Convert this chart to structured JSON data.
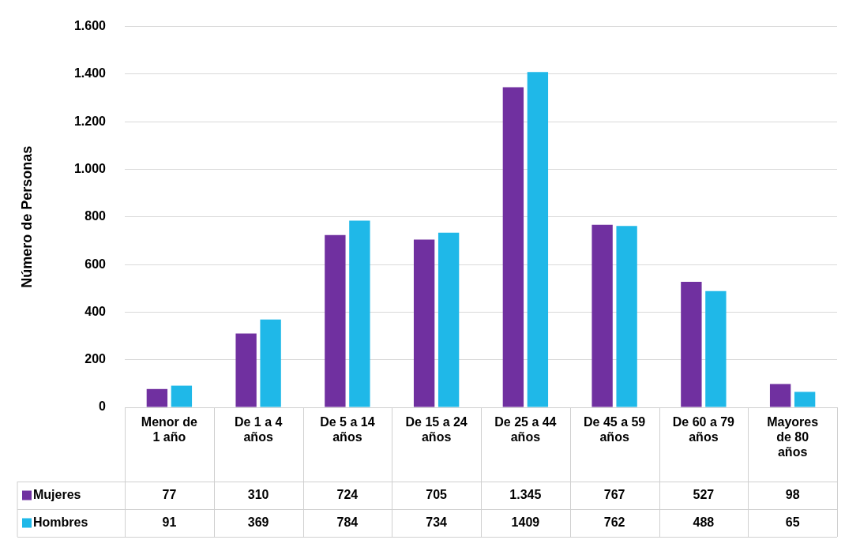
{
  "chart_data": {
    "type": "bar",
    "ylabel": "Número de Personas",
    "categories": [
      "Menor de 1 año",
      "De 1 a 4 años",
      "De 5 a 14 años",
      "De 15 a 24 años",
      "De 25 a 44 años",
      "De 45 a 59 años",
      "De 60 a 79 años",
      "Mayores de 80 años"
    ],
    "series": [
      {
        "name": "Mujeres",
        "color": "#7030a0",
        "values": [
          77,
          310,
          724,
          705,
          1345,
          767,
          527,
          98
        ],
        "value_labels": [
          "77",
          "310",
          "724",
          "705",
          "1.345",
          "767",
          "527",
          "98"
        ]
      },
      {
        "name": "Hombres",
        "color": "#1fb8e8",
        "values": [
          91,
          369,
          784,
          734,
          1409,
          762,
          488,
          65
        ],
        "value_labels": [
          "91",
          "369",
          "784",
          "734",
          "1409",
          "762",
          "488",
          "65"
        ]
      }
    ],
    "ylim": [
      0,
      1600
    ],
    "yticks": [
      0,
      {
        "value": 200,
        "label": "200"
      },
      {
        "value": 400,
        "label": "400"
      },
      {
        "value": 600,
        "label": "600"
      },
      {
        "value": 800,
        "label": "800"
      },
      {
        "value": 1000,
        "label": "1.000"
      },
      {
        "value": 1200,
        "label": "1.200"
      },
      {
        "value": 1400,
        "label": "1.400"
      },
      {
        "value": 1600,
        "label": "1.600"
      }
    ],
    "grid": "y",
    "legend": "bottom"
  }
}
